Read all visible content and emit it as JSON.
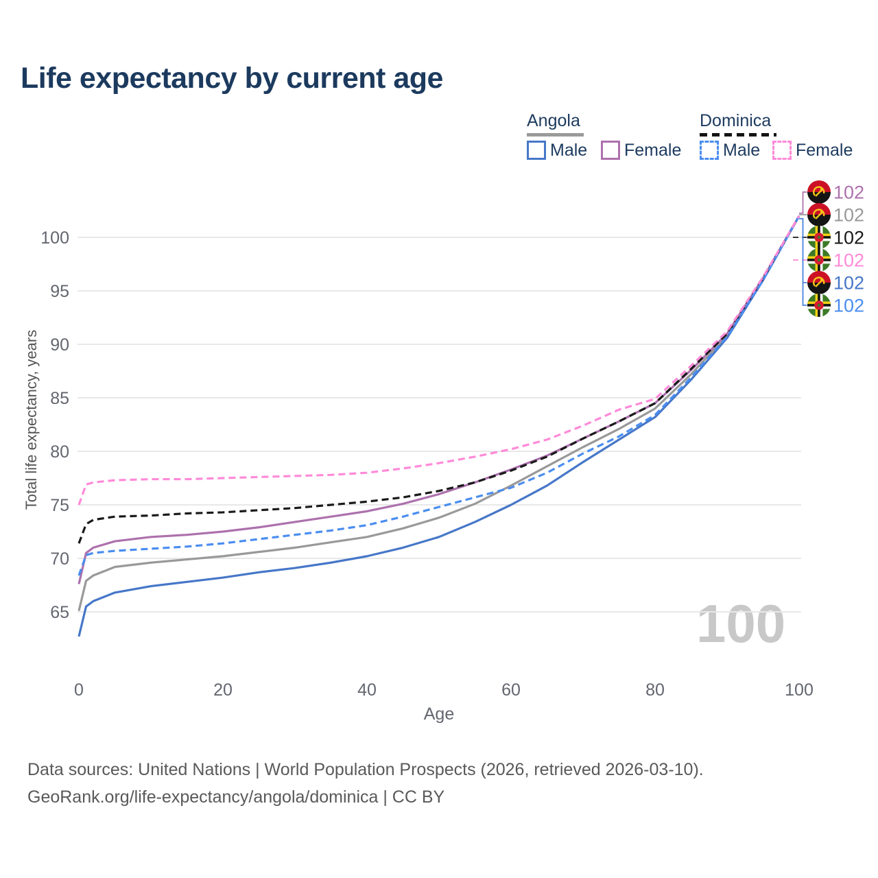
{
  "title": "Life expectancy by current age",
  "legend": {
    "groups": [
      {
        "label": "Angola",
        "line_style": "solid",
        "underline_color": "#9a9a9a",
        "items": [
          {
            "label": "Male",
            "color": "#4677c8"
          },
          {
            "label": "Female",
            "color": "#ad71ad"
          }
        ]
      },
      {
        "label": "Dominica",
        "line_style": "dashed",
        "underline_color": "#141414",
        "items": [
          {
            "label": "Male",
            "color": "#4a8df0"
          },
          {
            "label": "Female",
            "color": "#ff8ad8"
          }
        ]
      }
    ]
  },
  "watermark_age": "100",
  "source": {
    "line1": "Data sources: United Nations | World Population Prospects (2026, retrieved 2026-03-10).",
    "line2": "GeoRank.org/life-expectancy/angola/dominica | CC BY"
  },
  "chart_data": {
    "type": "line",
    "title": "Life expectancy by current age",
    "xlabel": "Age",
    "ylabel": "Total life expectancy, years",
    "xlim": [
      0,
      100
    ],
    "ylim": [
      62,
      103
    ],
    "xticks": [
      0,
      20,
      40,
      60,
      80,
      100
    ],
    "yticks": [
      65,
      70,
      75,
      80,
      85,
      90,
      95,
      100
    ],
    "grid": "horizontal-only",
    "gridline_color": "#e8e8e8",
    "tick_color": "#63666f",
    "x": [
      0,
      1,
      2,
      5,
      10,
      15,
      20,
      25,
      30,
      35,
      40,
      45,
      50,
      55,
      60,
      65,
      70,
      75,
      80,
      85,
      90,
      95,
      100
    ],
    "series": [
      {
        "name": "Angola Female",
        "country": "angola",
        "sex": "Female",
        "color": "#ad71ad",
        "dash": "solid",
        "end_label": "102",
        "values": [
          67.6,
          70.5,
          71.0,
          71.6,
          72.0,
          72.2,
          72.5,
          72.9,
          73.4,
          73.9,
          74.4,
          75.1,
          76.0,
          77.1,
          78.3,
          79.6,
          81.2,
          82.8,
          84.5,
          87.6,
          91.0,
          96.2,
          102
        ]
      },
      {
        "name": "Angola Both sexes",
        "country": "angola",
        "sex": "Both",
        "color": "#999999",
        "dash": "solid",
        "end_label": "102",
        "values": [
          65.1,
          67.9,
          68.4,
          69.2,
          69.6,
          69.9,
          70.2,
          70.6,
          71.0,
          71.5,
          72.0,
          72.8,
          73.8,
          75.1,
          76.8,
          78.6,
          80.4,
          82.1,
          84.0,
          87.2,
          90.8,
          96.1,
          102
        ]
      },
      {
        "name": "Dominica Both sexes",
        "country": "dominica",
        "sex": "Both",
        "color": "#1a1a1a",
        "dash": "dashed",
        "end_label": "102",
        "values": [
          71.4,
          73.2,
          73.6,
          73.9,
          74.0,
          74.2,
          74.3,
          74.5,
          74.7,
          75.0,
          75.3,
          75.7,
          76.3,
          77.1,
          78.2,
          79.5,
          81.2,
          82.8,
          84.5,
          87.7,
          91.0,
          96.2,
          102
        ]
      },
      {
        "name": "Dominica Female",
        "country": "dominica",
        "sex": "Female",
        "color": "#ff8ad8",
        "dash": "dashed",
        "end_label": "102",
        "values": [
          75.0,
          76.9,
          77.1,
          77.3,
          77.4,
          77.4,
          77.5,
          77.6,
          77.7,
          77.8,
          78.0,
          78.4,
          78.9,
          79.5,
          80.2,
          81.1,
          82.4,
          83.9,
          84.9,
          88.0,
          91.2,
          96.3,
          102
        ]
      },
      {
        "name": "Angola Male",
        "country": "angola",
        "sex": "Male",
        "color": "#4677c8",
        "dash": "solid",
        "end_label": "102",
        "values": [
          62.7,
          65.5,
          66.0,
          66.8,
          67.4,
          67.8,
          68.2,
          68.7,
          69.1,
          69.6,
          70.2,
          71.0,
          72.0,
          73.4,
          75.0,
          76.8,
          79.0,
          81.1,
          83.2,
          86.7,
          90.6,
          96.0,
          102
        ]
      },
      {
        "name": "Dominica Male",
        "country": "dominica",
        "sex": "Male",
        "color": "#4a8df0",
        "dash": "dashed",
        "end_label": "102",
        "values": [
          68.4,
          70.3,
          70.5,
          70.7,
          70.9,
          71.1,
          71.4,
          71.8,
          72.2,
          72.6,
          73.1,
          73.9,
          74.8,
          75.7,
          76.6,
          78.0,
          79.8,
          81.4,
          83.4,
          86.9,
          90.7,
          96.0,
          102
        ]
      }
    ],
    "end_label_order": [
      "Angola Female",
      "Angola Both sexes",
      "Dominica Both sexes",
      "Dominica Female",
      "Angola Male",
      "Dominica Male"
    ],
    "legend_position": "top-right"
  }
}
